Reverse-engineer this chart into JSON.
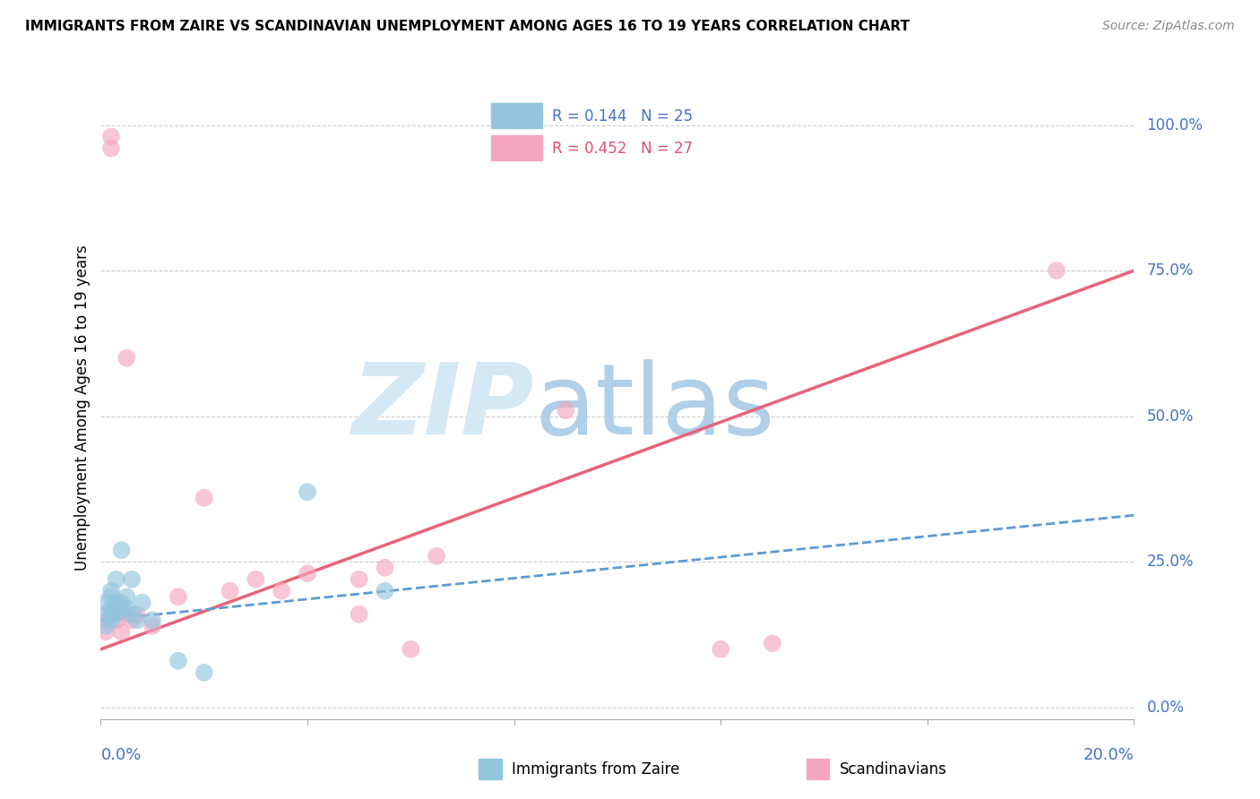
{
  "title": "IMMIGRANTS FROM ZAIRE VS SCANDINAVIAN UNEMPLOYMENT AMONG AGES 16 TO 19 YEARS CORRELATION CHART",
  "source": "Source: ZipAtlas.com",
  "ylabel": "Unemployment Among Ages 16 to 19 years",
  "xlim": [
    0.0,
    0.2
  ],
  "ylim": [
    -0.02,
    1.05
  ],
  "blue_color": "#92c5de",
  "pink_color": "#f4a6c0",
  "trend_blue_color": "#5b9bd5",
  "trend_pink_color": "#e8637a",
  "blue_r": 0.144,
  "pink_r": 0.452,
  "blue_n": 25,
  "pink_n": 27,
  "blue_x": [
    0.001,
    0.001,
    0.001,
    0.002,
    0.002,
    0.002,
    0.002,
    0.002,
    0.003,
    0.003,
    0.003,
    0.004,
    0.004,
    0.004,
    0.005,
    0.005,
    0.006,
    0.006,
    0.007,
    0.008,
    0.01,
    0.015,
    0.02,
    0.04,
    0.055
  ],
  "blue_y": [
    0.18,
    0.16,
    0.14,
    0.19,
    0.17,
    0.16,
    0.15,
    0.2,
    0.18,
    0.16,
    0.22,
    0.17,
    0.18,
    0.27,
    0.17,
    0.19,
    0.16,
    0.22,
    0.15,
    0.18,
    0.15,
    0.08,
    0.06,
    0.37,
    0.2
  ],
  "pink_x": [
    0.001,
    0.001,
    0.002,
    0.002,
    0.003,
    0.003,
    0.004,
    0.005,
    0.005,
    0.006,
    0.007,
    0.01,
    0.015,
    0.02,
    0.025,
    0.03,
    0.035,
    0.04,
    0.05,
    0.05,
    0.055,
    0.06,
    0.065,
    0.09,
    0.12,
    0.13,
    0.185
  ],
  "pink_y": [
    0.15,
    0.13,
    0.96,
    0.98,
    0.17,
    0.15,
    0.13,
    0.6,
    0.16,
    0.15,
    0.16,
    0.14,
    0.19,
    0.36,
    0.2,
    0.22,
    0.2,
    0.23,
    0.22,
    0.16,
    0.24,
    0.1,
    0.26,
    0.51,
    0.1,
    0.11,
    0.75
  ],
  "grid_color": "#cccccc",
  "axis_label_color": "#4472c4",
  "legend_blue_text_color": "#4472c4",
  "legend_pink_text_color": "#e05070",
  "watermark_zip_color": "#d5e8f5",
  "watermark_atlas_color": "#b0cfe8"
}
